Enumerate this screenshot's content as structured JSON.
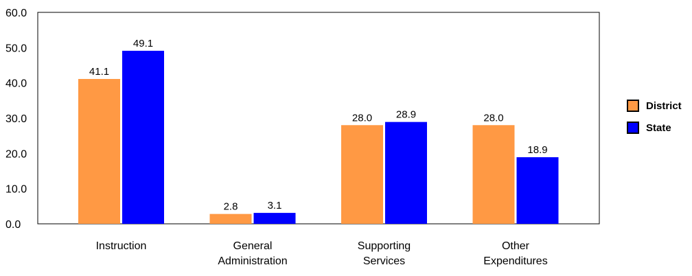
{
  "chart_data": {
    "type": "bar",
    "categories": [
      [
        "Instruction"
      ],
      [
        "General",
        "Administration"
      ],
      [
        "Supporting",
        "Services"
      ],
      [
        "Other",
        "Expenditures"
      ]
    ],
    "series": [
      {
        "name": "District",
        "color": "#FF9944",
        "values": [
          41.1,
          2.8,
          28.0,
          28.0
        ],
        "labels": [
          "41.1",
          "2.8",
          "28.0",
          "28.0"
        ]
      },
      {
        "name": "State",
        "color": "#0000FF",
        "values": [
          49.1,
          3.1,
          28.9,
          18.9
        ],
        "labels": [
          "49.1",
          "3.1",
          "28.9",
          "18.9"
        ]
      }
    ],
    "ylim": [
      0,
      60
    ],
    "yticks": [
      "0.0",
      "10.0",
      "20.0",
      "30.0",
      "40.0",
      "50.0",
      "60.0"
    ],
    "title": "",
    "xlabel": "",
    "ylabel": "",
    "grid": false,
    "legend_position": "right"
  }
}
